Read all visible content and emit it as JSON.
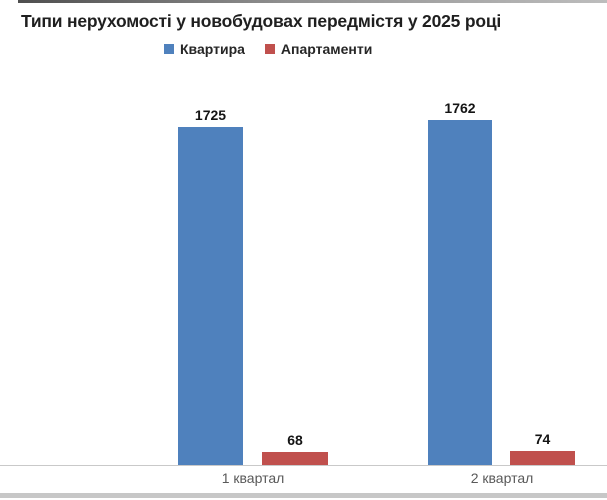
{
  "title": "Типи нерухомості у новобудовах передмістя у 2025 році",
  "legend": {
    "items": [
      {
        "label": "Квартира",
        "color": "#4f81bd"
      },
      {
        "label": "Апартаменти",
        "color": "#c0504d"
      }
    ]
  },
  "chart_data": {
    "type": "bar",
    "title": "Типи нерухомості у новобудовах передмістя у 2025 році",
    "categories": [
      "1 квартал",
      "2 квартал"
    ],
    "series": [
      {
        "name": "Квартира",
        "color": "#4f81bd",
        "values": [
          1725,
          1762
        ]
      },
      {
        "name": "Апартаменти",
        "color": "#c0504d",
        "values": [
          68,
          74
        ]
      }
    ],
    "ylim": [
      0,
      1900
    ],
    "grid": false,
    "legend_position": "top",
    "value_labels_shown": true,
    "axis_line_color": "#c9c9c9",
    "xlabel": "",
    "ylabel": ""
  }
}
